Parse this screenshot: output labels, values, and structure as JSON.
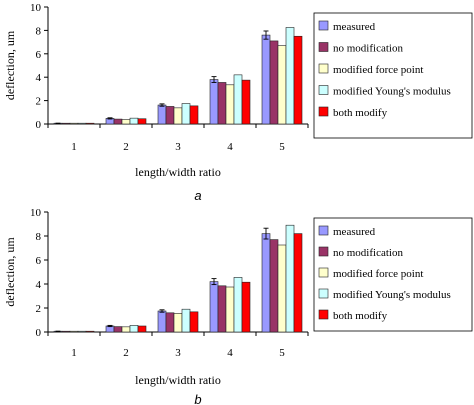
{
  "chart_data": [
    {
      "type": "bar",
      "panel_label": "a",
      "xlabel": "length/width ratio",
      "ylabel": "deflection, um",
      "categories": [
        "1",
        "2",
        "3",
        "4",
        "5"
      ],
      "ylim": [
        0,
        10
      ],
      "yticks": [
        "0",
        "2",
        "4",
        "6",
        "8",
        "10"
      ],
      "grid": false,
      "legend_position": "right",
      "series": [
        {
          "name": "measured",
          "color": "#9999ff",
          "values": [
            0.05,
            0.48,
            1.62,
            3.8,
            7.6
          ],
          "errors": [
            0.02,
            0.05,
            0.1,
            0.25,
            0.35
          ]
        },
        {
          "name": "no modification",
          "color": "#993366",
          "values": [
            0.04,
            0.42,
            1.5,
            3.55,
            7.1
          ]
        },
        {
          "name": "modified force point",
          "color": "#ffffcc",
          "values": [
            0.03,
            0.38,
            1.38,
            3.35,
            6.7
          ]
        },
        {
          "name": "modified Young's modulus",
          "color": "#ccffff",
          "values": [
            0.05,
            0.5,
            1.75,
            4.2,
            8.25
          ]
        },
        {
          "name": "both modify",
          "color": "#ff0000",
          "values": [
            0.04,
            0.45,
            1.55,
            3.75,
            7.5
          ]
        }
      ]
    },
    {
      "type": "bar",
      "panel_label": "b",
      "xlabel": "length/width ratio",
      "ylabel": "deflection, um",
      "categories": [
        "1",
        "2",
        "3",
        "4",
        "5"
      ],
      "ylim": [
        0,
        10
      ],
      "yticks": [
        "0",
        "2",
        "4",
        "6",
        "8",
        "10"
      ],
      "grid": false,
      "legend_position": "right",
      "series": [
        {
          "name": "measured",
          "color": "#9999ff",
          "values": [
            0.05,
            0.5,
            1.75,
            4.2,
            8.2
          ],
          "errors": [
            0.02,
            0.05,
            0.1,
            0.25,
            0.45
          ]
        },
        {
          "name": "no modification",
          "color": "#993366",
          "values": [
            0.04,
            0.45,
            1.6,
            3.85,
            7.7
          ]
        },
        {
          "name": "modified force point",
          "color": "#ffffcc",
          "values": [
            0.03,
            0.43,
            1.55,
            3.75,
            7.25
          ]
        },
        {
          "name": "modified Young's modulus",
          "color": "#ccffff",
          "values": [
            0.05,
            0.55,
            1.9,
            4.55,
            8.9
          ]
        },
        {
          "name": "both modify",
          "color": "#ff0000",
          "values": [
            0.04,
            0.5,
            1.68,
            4.15,
            8.2
          ]
        }
      ]
    }
  ]
}
